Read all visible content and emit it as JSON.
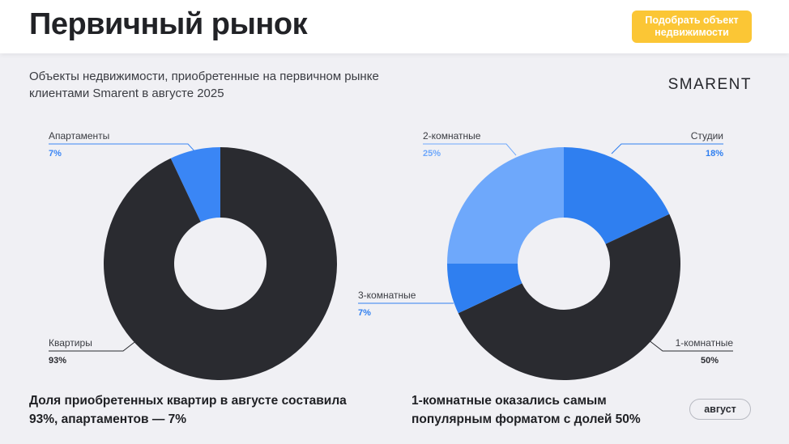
{
  "header": {
    "title": "Первичный рынок",
    "cta_label": "Подобрать объект\nнедвижимости"
  },
  "subtitle": "Объекты недвижимости, приобретенные на первичном рынке клиентами Smarent в августе 2025",
  "brand": "SMARENT",
  "captions": {
    "left": "Доля приобретенных квартир в августе составила 93%, апартаментов — 7%",
    "right": "1-комнатные оказались самым популярным форматом с долей 50%"
  },
  "month_label": "август",
  "chart_data": [
    {
      "type": "pie",
      "donut": true,
      "title": "",
      "series": [
        {
          "name": "Апартаменты",
          "value": 7,
          "label": "7%",
          "color": "#3a86f5"
        },
        {
          "name": "Квартиры",
          "value": 93,
          "label": "93%",
          "color": "#2a2b30"
        }
      ]
    },
    {
      "type": "pie",
      "donut": true,
      "title": "",
      "series": [
        {
          "name": "Студии",
          "value": 18,
          "label": "18%",
          "color": "#2f7ff0"
        },
        {
          "name": "1-комнатные",
          "value": 50,
          "label": "50%",
          "color": "#2a2b30"
        },
        {
          "name": "3-комнатные",
          "value": 7,
          "label": "7%",
          "color": "#2f7ff0"
        },
        {
          "name": "2-комнатные",
          "value": 25,
          "label": "25%",
          "color": "#6ea8fb"
        }
      ]
    }
  ]
}
